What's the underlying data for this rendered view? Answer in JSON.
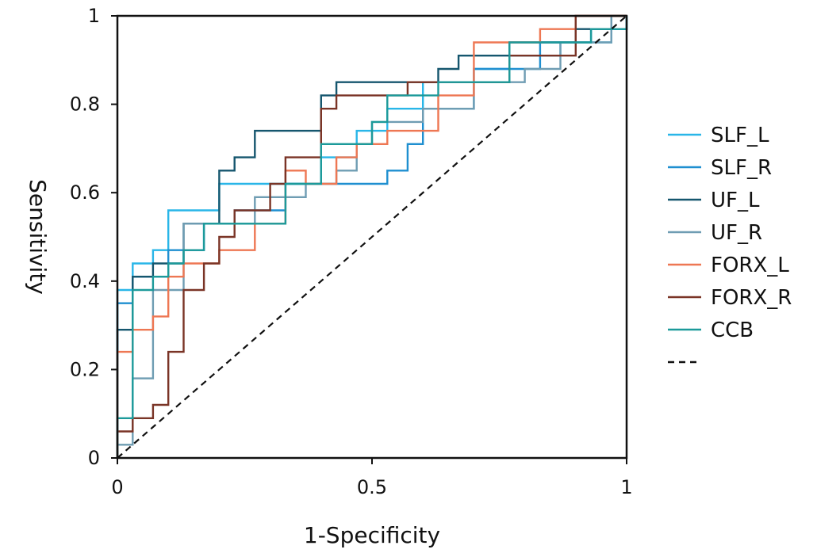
{
  "chart_data": {
    "type": "line",
    "title": "",
    "xlabel": "1-Specificity",
    "ylabel": "Sensitivity",
    "xlim": [
      0,
      1
    ],
    "ylim": [
      0,
      1
    ],
    "x_ticks": [
      0,
      0.5,
      1
    ],
    "x_tick_labels": [
      "0",
      "0.5",
      "1"
    ],
    "y_ticks": [
      0,
      0.2,
      0.4,
      0.6,
      0.8,
      1
    ],
    "y_tick_labels": [
      "0",
      "0.2",
      "0.4",
      "0.6",
      "0.8",
      "1"
    ],
    "grid": false,
    "legend_position": "right",
    "series": [
      {
        "name": "SLF_L",
        "color": "#29b6e8",
        "x": [
          0,
          0,
          0.03,
          0.03,
          0.07,
          0.07,
          0.1,
          0.1,
          0.2,
          0.2,
          0.4,
          0.4,
          0.47,
          0.47,
          0.53,
          0.53,
          0.6,
          0.6,
          0.7,
          0.7,
          0.77,
          0.77,
          0.87,
          0.87,
          0.97,
          0.97,
          1,
          1
        ],
        "y": [
          0,
          0.38,
          0.38,
          0.44,
          0.44,
          0.47,
          0.47,
          0.56,
          0.56,
          0.62,
          0.62,
          0.68,
          0.68,
          0.74,
          0.74,
          0.79,
          0.79,
          0.85,
          0.85,
          0.88,
          0.88,
          0.91,
          0.91,
          0.94,
          0.94,
          0.97,
          0.97,
          1
        ]
      },
      {
        "name": "SLF_R",
        "color": "#1f8fd0",
        "x": [
          0,
          0,
          0.03,
          0.03,
          0.1,
          0.1,
          0.17,
          0.17,
          0.23,
          0.23,
          0.33,
          0.33,
          0.43,
          0.43,
          0.53,
          0.53,
          0.57,
          0.57,
          0.6,
          0.6,
          0.7,
          0.7,
          0.83,
          0.83,
          0.93,
          0.93,
          1,
          1
        ],
        "y": [
          0,
          0.35,
          0.35,
          0.41,
          0.41,
          0.47,
          0.47,
          0.53,
          0.53,
          0.56,
          0.56,
          0.62,
          0.62,
          0.62,
          0.62,
          0.65,
          0.65,
          0.71,
          0.71,
          0.79,
          0.79,
          0.88,
          0.88,
          0.94,
          0.94,
          0.97,
          0.97,
          1
        ]
      },
      {
        "name": "UF_L",
        "color": "#15566e",
        "x": [
          0,
          0,
          0.03,
          0.03,
          0.07,
          0.07,
          0.13,
          0.13,
          0.2,
          0.2,
          0.23,
          0.23,
          0.27,
          0.27,
          0.4,
          0.4,
          0.43,
          0.43,
          0.63,
          0.63,
          0.67,
          0.67,
          0.77,
          0.77,
          0.9,
          0.9,
          0.97,
          0.97,
          1
        ],
        "y": [
          0,
          0.29,
          0.29,
          0.41,
          0.41,
          0.44,
          0.44,
          0.53,
          0.53,
          0.65,
          0.65,
          0.68,
          0.68,
          0.74,
          0.74,
          0.82,
          0.82,
          0.85,
          0.85,
          0.88,
          0.88,
          0.91,
          0.91,
          0.94,
          0.94,
          0.97,
          0.97,
          1,
          1
        ]
      },
      {
        "name": "UF_R",
        "color": "#6f9db3",
        "x": [
          0,
          0,
          0.03,
          0.03,
          0.07,
          0.07,
          0.13,
          0.13,
          0.27,
          0.27,
          0.37,
          0.37,
          0.43,
          0.43,
          0.47,
          0.47,
          0.5,
          0.5,
          0.6,
          0.6,
          0.7,
          0.7,
          0.8,
          0.8,
          0.87,
          0.87,
          0.97,
          0.97,
          1
        ],
        "y": [
          0,
          0.03,
          0.03,
          0.18,
          0.18,
          0.38,
          0.38,
          0.53,
          0.53,
          0.59,
          0.59,
          0.62,
          0.62,
          0.65,
          0.65,
          0.71,
          0.71,
          0.76,
          0.76,
          0.79,
          0.79,
          0.85,
          0.85,
          0.88,
          0.88,
          0.94,
          0.94,
          1,
          1
        ]
      },
      {
        "name": "FORX_L",
        "color": "#ee7753",
        "x": [
          0,
          0,
          0.03,
          0.03,
          0.07,
          0.07,
          0.1,
          0.1,
          0.13,
          0.13,
          0.2,
          0.2,
          0.27,
          0.27,
          0.33,
          0.33,
          0.37,
          0.37,
          0.43,
          0.43,
          0.47,
          0.47,
          0.53,
          0.53,
          0.63,
          0.63,
          0.7,
          0.7,
          0.83,
          0.83,
          0.9,
          0.9,
          1
        ],
        "y": [
          0,
          0.24,
          0.24,
          0.29,
          0.29,
          0.32,
          0.32,
          0.41,
          0.41,
          0.44,
          0.44,
          0.47,
          0.47,
          0.53,
          0.53,
          0.65,
          0.65,
          0.62,
          0.62,
          0.68,
          0.68,
          0.71,
          0.71,
          0.74,
          0.74,
          0.82,
          0.82,
          0.94,
          0.94,
          0.97,
          0.97,
          1,
          1
        ]
      },
      {
        "name": "FORX_R",
        "color": "#7a3426",
        "x": [
          0,
          0,
          0.03,
          0.03,
          0.07,
          0.07,
          0.1,
          0.1,
          0.13,
          0.13,
          0.17,
          0.17,
          0.2,
          0.2,
          0.23,
          0.23,
          0.3,
          0.3,
          0.33,
          0.33,
          0.4,
          0.4,
          0.43,
          0.43,
          0.57,
          0.57,
          0.63,
          0.63,
          0.77,
          0.77,
          0.9,
          0.9,
          1
        ],
        "y": [
          0,
          0.06,
          0.06,
          0.09,
          0.09,
          0.12,
          0.12,
          0.24,
          0.24,
          0.38,
          0.38,
          0.44,
          0.44,
          0.5,
          0.5,
          0.56,
          0.56,
          0.62,
          0.62,
          0.68,
          0.68,
          0.79,
          0.79,
          0.82,
          0.82,
          0.85,
          0.85,
          0.85,
          0.85,
          0.91,
          0.91,
          1,
          1
        ]
      },
      {
        "name": "CCB",
        "color": "#1c9a9a",
        "x": [
          0,
          0,
          0.03,
          0.03,
          0.07,
          0.07,
          0.1,
          0.1,
          0.13,
          0.13,
          0.17,
          0.17,
          0.33,
          0.33,
          0.4,
          0.4,
          0.5,
          0.5,
          0.53,
          0.53,
          0.63,
          0.63,
          0.77,
          0.77,
          0.93,
          0.93,
          1,
          1
        ],
        "y": [
          0,
          0.09,
          0.09,
          0.38,
          0.38,
          0.41,
          0.41,
          0.44,
          0.44,
          0.47,
          0.47,
          0.53,
          0.53,
          0.62,
          0.62,
          0.71,
          0.71,
          0.76,
          0.76,
          0.82,
          0.82,
          0.85,
          0.85,
          0.94,
          0.94,
          0.97,
          0.97,
          1
        ]
      },
      {
        "name": "",
        "color": "#111111",
        "dashed": true,
        "x": [
          0,
          1
        ],
        "y": [
          0,
          1
        ]
      }
    ]
  }
}
